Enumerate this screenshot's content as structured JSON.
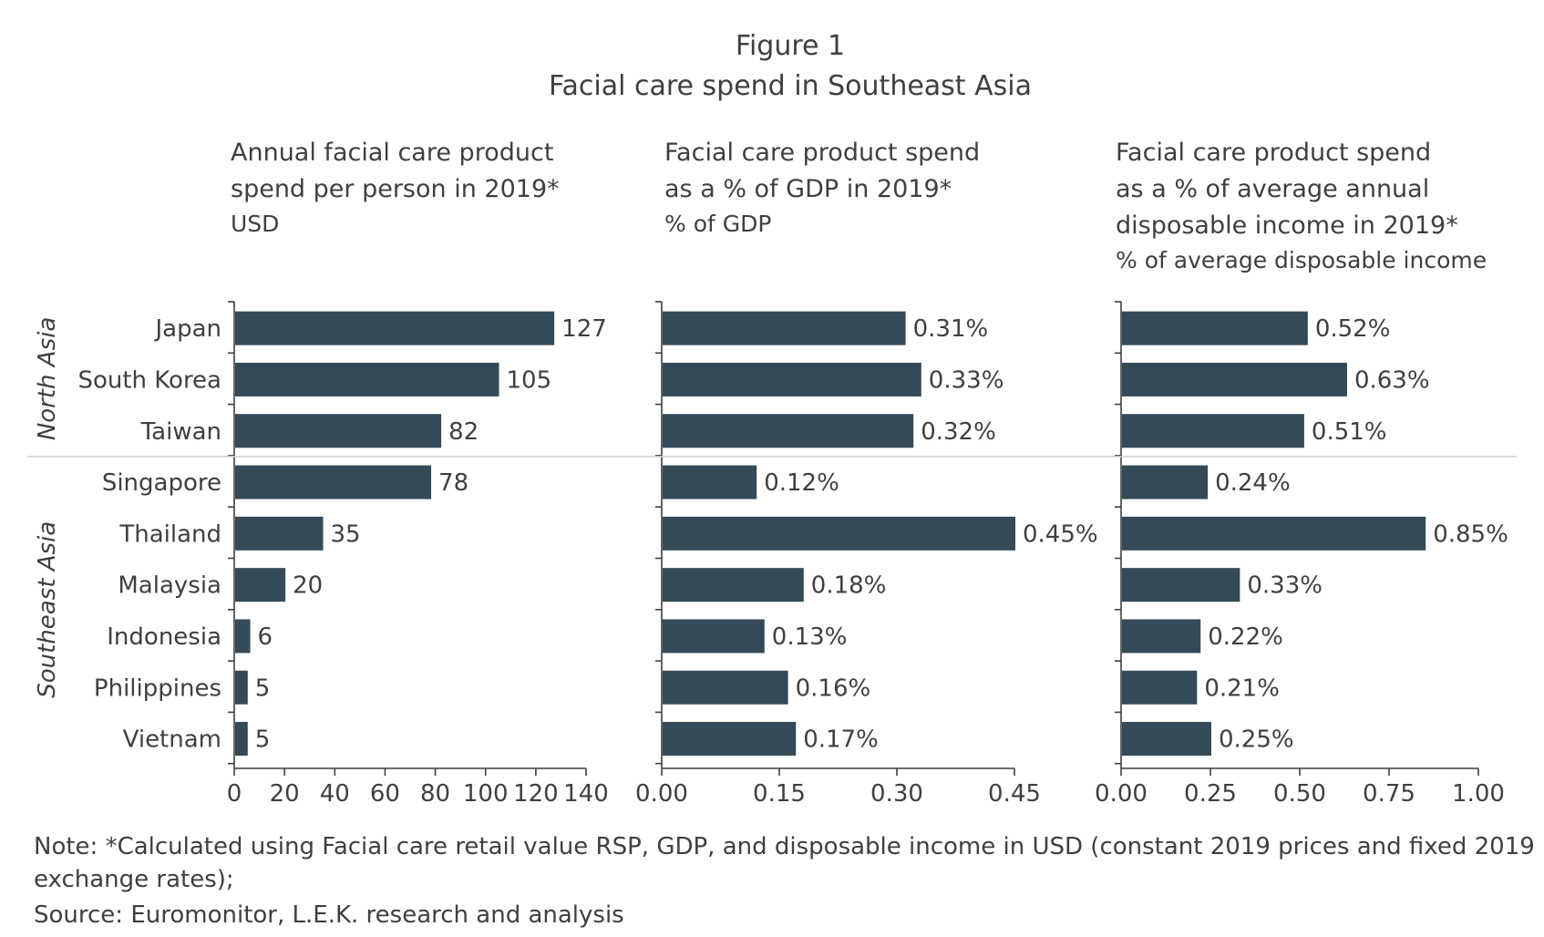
{
  "figure": {
    "label": "Figure 1",
    "title": "Facial care spend in Southeast Asia"
  },
  "regions": [
    {
      "name": "North Asia",
      "count": 3
    },
    {
      "name": "Southeast Asia",
      "count": 6
    }
  ],
  "chart_data": [
    {
      "type": "bar",
      "orientation": "horizontal",
      "title_lines": [
        "Annual facial care product",
        "spend per person in 2019*"
      ],
      "unit": "USD",
      "categories": [
        "Japan",
        "South Korea",
        "Taiwan",
        "Singapore",
        "Thailand",
        "Malaysia",
        "Indonesia",
        "Philippines",
        "Vietnam"
      ],
      "values": [
        127,
        105,
        82,
        78,
        35,
        20,
        6,
        5,
        5
      ],
      "value_labels": [
        "127",
        "105",
        "82",
        "78",
        "35",
        "20",
        "6",
        "5",
        "5"
      ],
      "xlim": [
        0,
        140
      ],
      "ticks": [
        0,
        20,
        40,
        60,
        80,
        100,
        120,
        140
      ],
      "tick_labels": [
        "0",
        "20",
        "40",
        "60",
        "80",
        "100",
        "120",
        "140"
      ],
      "bar_color": "#344a58"
    },
    {
      "type": "bar",
      "orientation": "horizontal",
      "title_lines": [
        "Facial care product spend",
        "as a % of GDP in 2019*"
      ],
      "unit": "% of GDP",
      "categories": [
        "Japan",
        "South Korea",
        "Taiwan",
        "Singapore",
        "Thailand",
        "Malaysia",
        "Indonesia",
        "Philippines",
        "Vietnam"
      ],
      "values": [
        0.31,
        0.33,
        0.32,
        0.12,
        0.45,
        0.18,
        0.13,
        0.16,
        0.17
      ],
      "value_labels": [
        "0.31%",
        "0.33%",
        "0.32%",
        "0.12%",
        "0.45%",
        "0.18%",
        "0.13%",
        "0.16%",
        "0.17%"
      ],
      "xlim": [
        0,
        0.45
      ],
      "ticks": [
        0,
        0.15,
        0.3,
        0.45
      ],
      "tick_labels": [
        "0.00",
        "0.15",
        "0.30",
        "0.45"
      ],
      "bar_color": "#344a58"
    },
    {
      "type": "bar",
      "orientation": "horizontal",
      "title_lines": [
        "Facial care product spend",
        "as a % of average annual",
        "disposable income in 2019*"
      ],
      "unit": "% of average disposable income",
      "categories": [
        "Japan",
        "South Korea",
        "Taiwan",
        "Singapore",
        "Thailand",
        "Malaysia",
        "Indonesia",
        "Philippines",
        "Vietnam"
      ],
      "values": [
        0.52,
        0.63,
        0.51,
        0.24,
        0.85,
        0.33,
        0.22,
        0.21,
        0.25
      ],
      "value_labels": [
        "0.52%",
        "0.63%",
        "0.51%",
        "0.24%",
        "0.85%",
        "0.33%",
        "0.22%",
        "0.21%",
        "0.25%"
      ],
      "xlim": [
        0,
        1.0
      ],
      "ticks": [
        0,
        0.25,
        0.5,
        0.75,
        1.0
      ],
      "tick_labels": [
        "0.00",
        "0.25",
        "0.50",
        "0.75",
        "1.00"
      ],
      "bar_color": "#344a58"
    }
  ],
  "footer": {
    "note_line1": "Note: *Calculated using Facial care retail value RSP, GDP, and disposable income in USD (constant 2019 prices and fixed 2019",
    "note_line2": "exchange rates);",
    "source": "Source: Euromonitor, L.E.K. research and analysis"
  }
}
